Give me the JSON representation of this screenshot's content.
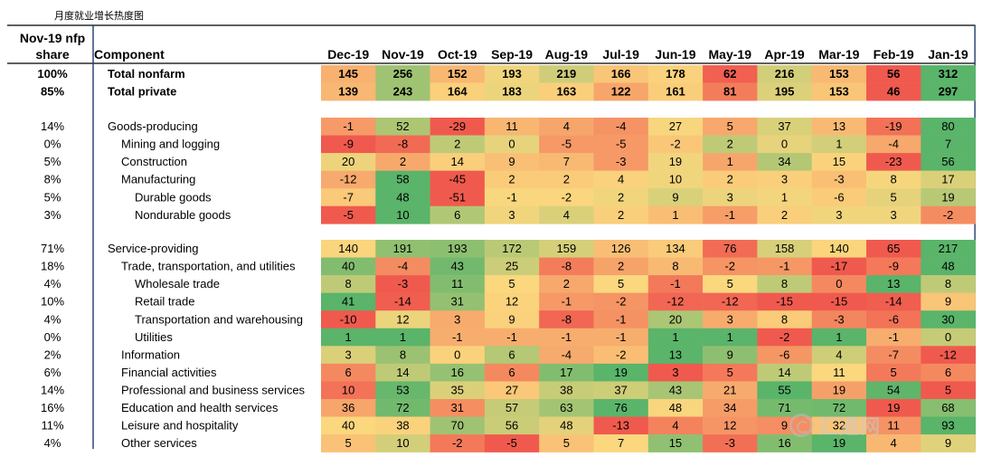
{
  "chart_data": {
    "type": "heatmap",
    "title": "月度就业增长热度图",
    "share_header": "Nov-19 nfp share",
    "component_header": "Component",
    "columns": [
      "Dec-19",
      "Nov-19",
      "Oct-19",
      "Sep-19",
      "Aug-19",
      "Jul-19",
      "Jun-19",
      "May-19",
      "Apr-19",
      "Mar-19",
      "Feb-19",
      "Jan-19"
    ],
    "color_scale": {
      "low": "#f05a4e",
      "mid": "#fbd77e",
      "high": "#5ab46a"
    },
    "rows": [
      {
        "share": "100%",
        "label": "Total nonfarm",
        "indent": 0,
        "bold": true,
        "group": "top",
        "values": [
          145,
          256,
          152,
          193,
          219,
          166,
          178,
          62,
          216,
          153,
          56,
          312
        ]
      },
      {
        "share": "85%",
        "label": "Total private",
        "indent": 0,
        "bold": true,
        "group": "top",
        "values": [
          139,
          243,
          164,
          183,
          163,
          122,
          161,
          81,
          195,
          153,
          46,
          297
        ]
      },
      {
        "share": "14%",
        "label": "Goods-producing",
        "indent": 0,
        "bold": false,
        "group": "goods",
        "values": [
          -1,
          52,
          -29,
          11,
          4,
          -4,
          27,
          5,
          37,
          13,
          -19,
          80
        ]
      },
      {
        "share": "0%",
        "label": "Mining and logging",
        "indent": 1,
        "bold": false,
        "group": "goods",
        "values": [
          -9,
          -8,
          2,
          0,
          -5,
          -5,
          -2,
          2,
          0,
          1,
          -4,
          7
        ]
      },
      {
        "share": "5%",
        "label": "Construction",
        "indent": 1,
        "bold": false,
        "group": "goods",
        "values": [
          20,
          2,
          14,
          9,
          7,
          -3,
          19,
          1,
          34,
          15,
          -23,
          56
        ]
      },
      {
        "share": "8%",
        "label": "Manufacturing",
        "indent": 1,
        "bold": false,
        "group": "goods",
        "values": [
          -12,
          58,
          -45,
          2,
          2,
          4,
          10,
          2,
          3,
          -3,
          8,
          17
        ]
      },
      {
        "share": "5%",
        "label": "Durable goods",
        "indent": 2,
        "bold": false,
        "group": "goods",
        "values": [
          -7,
          48,
          -51,
          -1,
          -2,
          2,
          9,
          3,
          1,
          -6,
          5,
          19
        ]
      },
      {
        "share": "3%",
        "label": "Nondurable goods",
        "indent": 2,
        "bold": false,
        "group": "goods",
        "values": [
          -5,
          10,
          6,
          3,
          4,
          2,
          1,
          -1,
          2,
          3,
          3,
          -2
        ]
      },
      {
        "share": "71%",
        "label": "Service-providing",
        "indent": 0,
        "bold": false,
        "group": "services",
        "values": [
          140,
          191,
          193,
          172,
          159,
          126,
          134,
          76,
          158,
          140,
          65,
          217
        ]
      },
      {
        "share": "18%",
        "label": "Trade, transportation, and utilities",
        "indent": 1,
        "bold": false,
        "group": "services",
        "values": [
          40,
          -4,
          43,
          25,
          -8,
          2,
          8,
          -2,
          -1,
          -17,
          -9,
          48
        ]
      },
      {
        "share": "4%",
        "label": "Wholesale trade",
        "indent": 2,
        "bold": false,
        "group": "services",
        "values": [
          8,
          -3,
          11,
          5,
          2,
          5,
          -1,
          5,
          8,
          0,
          13,
          8
        ]
      },
      {
        "share": "10%",
        "label": "Retail trade",
        "indent": 2,
        "bold": false,
        "group": "services",
        "values": [
          41,
          -14,
          31,
          12,
          -1,
          -2,
          -12,
          -12,
          -15,
          -15,
          -14,
          9
        ]
      },
      {
        "share": "4%",
        "label": "Transportation and warehousing",
        "indent": 2,
        "bold": false,
        "group": "services",
        "values": [
          -10,
          12,
          3,
          9,
          -8,
          -1,
          20,
          3,
          8,
          -3,
          -6,
          30
        ]
      },
      {
        "share": "0%",
        "label": "Utilities",
        "indent": 2,
        "bold": false,
        "group": "services",
        "values": [
          1,
          1,
          -1,
          -1,
          -1,
          -1,
          1,
          1,
          -2,
          1,
          -1,
          0
        ]
      },
      {
        "share": "2%",
        "label": "Information",
        "indent": 1,
        "bold": false,
        "group": "services",
        "values": [
          3,
          8,
          0,
          6,
          -4,
          -2,
          13,
          9,
          -6,
          4,
          -7,
          -12
        ]
      },
      {
        "share": "6%",
        "label": "Financial activities",
        "indent": 1,
        "bold": false,
        "group": "services",
        "values": [
          6,
          14,
          16,
          6,
          17,
          19,
          3,
          5,
          14,
          11,
          5,
          6
        ]
      },
      {
        "share": "14%",
        "label": "Professional and business services",
        "indent": 1,
        "bold": false,
        "group": "services",
        "values": [
          10,
          53,
          35,
          27,
          38,
          37,
          43,
          21,
          55,
          19,
          54,
          5
        ]
      },
      {
        "share": "16%",
        "label": "Education and health services",
        "indent": 1,
        "bold": false,
        "group": "services",
        "values": [
          36,
          72,
          31,
          57,
          63,
          76,
          48,
          34,
          71,
          72,
          19,
          68
        ]
      },
      {
        "share": "11%",
        "label": "Leisure and hospitality",
        "indent": 1,
        "bold": false,
        "group": "services",
        "values": [
          40,
          38,
          70,
          56,
          48,
          -13,
          4,
          12,
          9,
          32,
          11,
          93
        ]
      },
      {
        "share": "4%",
        "label": "Other services",
        "indent": 1,
        "bold": false,
        "group": "services",
        "values": [
          5,
          10,
          -2,
          -5,
          5,
          7,
          15,
          -3,
          16,
          19,
          4,
          9
        ]
      }
    ]
  },
  "watermark": {
    "text": "汇通网",
    "icon": "logo-icon"
  }
}
